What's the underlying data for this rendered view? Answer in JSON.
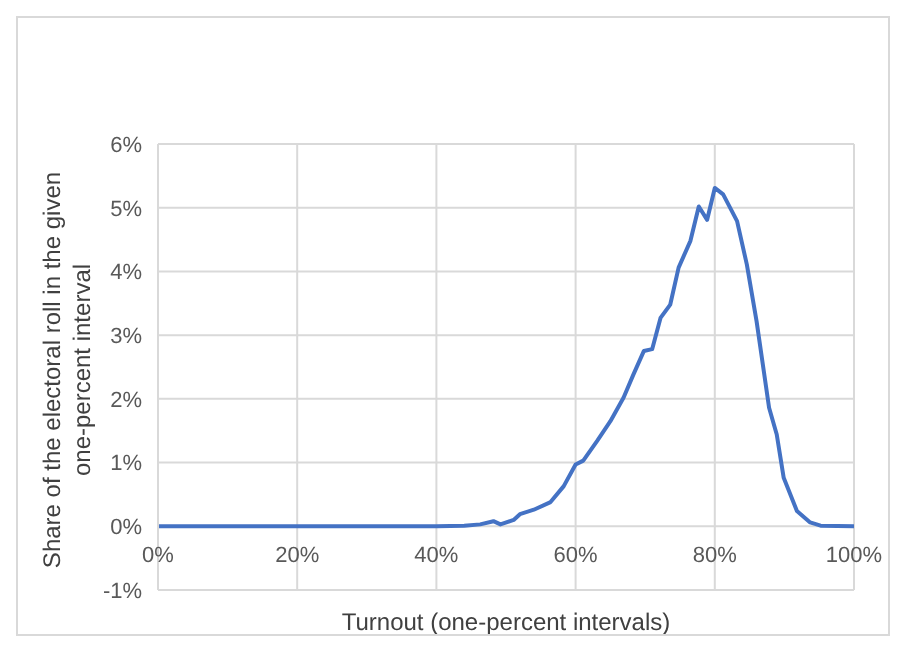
{
  "chart_data": {
    "type": "line",
    "xlabel": "Turnout (one-percent intervals)",
    "ylabel": "Share of the electoral roll in the given one-percent interval",
    "x": [
      0,
      10,
      20,
      30,
      40,
      44,
      46.3,
      48.2,
      49.2,
      51.1,
      52,
      54,
      56.4,
      58.3,
      60,
      61.1,
      63.1,
      65,
      66.9,
      68.3,
      69.8,
      71,
      72.2,
      73.6,
      74.8,
      76.5,
      77.7,
      78.9,
      80,
      81.2,
      83.2,
      84.6,
      86,
      87.8,
      88.9,
      89.9,
      91.8,
      93.7,
      95.2,
      100
    ],
    "series": [
      {
        "color": "#4472c4",
        "values": [
          0,
          0,
          0,
          0,
          0,
          0.01,
          0.03,
          0.08,
          0.03,
          0.1,
          0.19,
          0.26,
          0.38,
          0.63,
          0.97,
          1.03,
          1.34,
          1.65,
          2.02,
          2.38,
          2.75,
          2.78,
          3.27,
          3.48,
          4.06,
          4.48,
          5.02,
          4.81,
          5.31,
          5.21,
          4.79,
          4.11,
          3.22,
          1.86,
          1.44,
          0.76,
          0.24,
          0.06,
          0.01,
          0
        ]
      }
    ],
    "xlim": [
      0,
      100
    ],
    "xticks": [
      {
        "value": 0,
        "label": "0%"
      },
      {
        "value": 20,
        "label": "20%"
      },
      {
        "value": 40,
        "label": "40%"
      },
      {
        "value": 60,
        "label": "60%"
      },
      {
        "value": 80,
        "label": "80%"
      },
      {
        "value": 100,
        "label": "100%"
      }
    ],
    "ylim": [
      -1,
      6
    ],
    "yticks": [
      {
        "value": -1,
        "label": "-1%"
      },
      {
        "value": 0,
        "label": "0%"
      },
      {
        "value": 1,
        "label": "1%"
      },
      {
        "value": 2,
        "label": "2%"
      },
      {
        "value": 3,
        "label": "3%"
      },
      {
        "value": 4,
        "label": "4%"
      },
      {
        "value": 5,
        "label": "5%"
      },
      {
        "value": 6,
        "label": "6%"
      }
    ],
    "grid": true,
    "legend": false,
    "marker": "none",
    "line_style": "solid"
  }
}
